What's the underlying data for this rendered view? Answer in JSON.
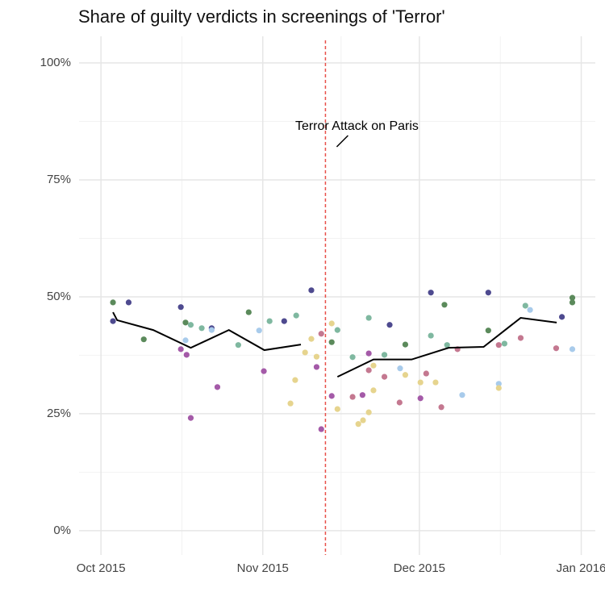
{
  "chart_data": {
    "type": "scatter",
    "title": "Share of guilty verdicts in screenings of 'Terror'",
    "xlim": [
      -4.2,
      94.7
    ],
    "xticks": [
      {
        "value": 0,
        "label": "Oct 2015"
      },
      {
        "value": 31,
        "label": "Nov 2015"
      },
      {
        "value": 61,
        "label": "Dec 2015"
      },
      {
        "value": 92,
        "label": "Jan 2016"
      }
    ],
    "minor_xticks": [
      15.5,
      46,
      76.5
    ],
    "ylim": [
      -5.2,
      105.7
    ],
    "yticks": [
      {
        "value": 0,
        "label": "0%"
      },
      {
        "value": 25,
        "label": "25%"
      },
      {
        "value": 50,
        "label": "50%"
      },
      {
        "value": 75,
        "label": "75%"
      },
      {
        "value": 100,
        "label": "100%"
      }
    ],
    "minor_yticks": [
      12.5,
      37.5,
      62.5,
      87.5
    ],
    "grid": true,
    "series": [
      {
        "color": "#5b8a5b",
        "x": [
          2.3,
          8.2,
          16.2,
          28.3,
          44.2,
          58.3,
          65.8,
          74.2,
          90.3,
          90.3
        ],
        "values": [
          48.8,
          40.9,
          44.5,
          46.7,
          40.3,
          39.8,
          48.3,
          42.8,
          49.8,
          48.8
        ]
      },
      {
        "color": "#4e4a8f",
        "x": [
          2.3,
          5.3,
          15.3,
          21.2,
          35.1,
          40.3,
          55.3,
          63.2,
          74.2,
          88.3
        ],
        "values": [
          44.8,
          48.8,
          47.8,
          43.3,
          44.8,
          51.4,
          44.0,
          50.9,
          50.9,
          45.7
        ]
      },
      {
        "color": "#7fb8a0",
        "x": [
          17.2,
          19.3,
          26.3,
          32.3,
          37.4,
          45.3,
          48.2,
          51.3,
          54.3,
          63.2,
          66.3,
          77.3,
          81.3
        ],
        "values": [
          44.0,
          43.3,
          39.7,
          44.8,
          46.0,
          42.9,
          37.1,
          45.5,
          37.6,
          41.7,
          39.7,
          40.0,
          48.1
        ]
      },
      {
        "color": "#a8cbeb",
        "x": [
          16.2,
          21.2,
          30.3,
          57.3,
          69.2,
          76.2,
          82.2,
          90.3
        ],
        "values": [
          40.7,
          42.9,
          42.8,
          34.7,
          29.0,
          31.4,
          47.2,
          38.8
        ]
      },
      {
        "color": "#a45aa8",
        "x": [
          15.3,
          16.4,
          17.2,
          22.3,
          31.2,
          41.3,
          42.2,
          44.2,
          50.1,
          51.3,
          61.2
        ],
        "values": [
          38.8,
          37.6,
          24.1,
          30.7,
          34.1,
          35.0,
          21.7,
          28.8,
          29.0,
          37.9,
          28.3
        ]
      },
      {
        "color": "#c47890",
        "x": [
          42.2,
          48.2,
          51.3,
          54.3,
          57.2,
          62.3,
          65.2,
          68.3,
          76.2,
          80.4,
          87.2
        ],
        "values": [
          42.1,
          28.6,
          34.3,
          32.9,
          27.4,
          33.6,
          26.4,
          38.8,
          39.7,
          41.2,
          39.0
        ]
      },
      {
        "color": "#e6d48e",
        "x": [
          36.3,
          37.2,
          39.1,
          40.3,
          41.3,
          44.2,
          45.3,
          49.3,
          50.2,
          51.3,
          52.2,
          52.2,
          58.3,
          61.2,
          64.1,
          76.2
        ],
        "values": [
          27.2,
          32.2,
          38.1,
          41.0,
          37.2,
          44.3,
          26.0,
          22.8,
          23.6,
          25.3,
          30.0,
          35.3,
          33.3,
          31.7,
          31.7,
          30.5
        ]
      }
    ],
    "trend": {
      "color": "#000000",
      "x": [
        2.3,
        3.1,
        10.0,
        17.2,
        24.5,
        31.3,
        38.3,
        null,
        45.3,
        52.2,
        59.5,
        66.6,
        73.3,
        80.4,
        87.3
      ],
      "values": [
        46.7,
        45.0,
        42.9,
        39.1,
        42.9,
        38.6,
        39.8,
        null,
        32.9,
        36.6,
        36.6,
        39.1,
        39.3,
        45.5,
        44.5
      ]
    },
    "vline": {
      "x": 43,
      "color": "#e8504a"
    },
    "annotation": {
      "text": "Terror Attack on Paris"
    }
  }
}
